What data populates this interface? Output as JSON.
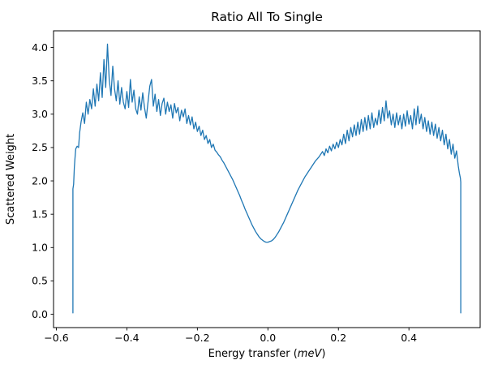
{
  "title": "Ratio All To Single",
  "axes": {
    "ylabel": "Scattered Weight",
    "xlabel_prefix": "Energy transfer (",
    "xlabel_italic": "meV",
    "xlabel_suffix": ")",
    "xlim": [
      -0.608,
      0.602
    ],
    "ylim": [
      -0.2,
      4.25
    ],
    "x_ticks": [
      {
        "v": -0.6,
        "label": "−0.6"
      },
      {
        "v": -0.4,
        "label": "−0.4"
      },
      {
        "v": -0.2,
        "label": "−0.2"
      },
      {
        "v": 0.0,
        "label": "0.0"
      },
      {
        "v": 0.2,
        "label": "0.2"
      },
      {
        "v": 0.4,
        "label": "0.4"
      }
    ],
    "y_ticks": [
      {
        "v": 0.0,
        "label": "0.0"
      },
      {
        "v": 0.5,
        "label": "0.5"
      },
      {
        "v": 1.0,
        "label": "1.0"
      },
      {
        "v": 1.5,
        "label": "1.5"
      },
      {
        "v": 2.0,
        "label": "2.0"
      },
      {
        "v": 2.5,
        "label": "2.5"
      },
      {
        "v": 3.0,
        "label": "3.0"
      },
      {
        "v": 3.5,
        "label": "3.5"
      },
      {
        "v": 4.0,
        "label": "4.0"
      }
    ]
  },
  "chart_data": {
    "type": "line",
    "title": "Ratio All To Single",
    "xlabel": "Energy transfer (meV)",
    "ylabel": "Scattered Weight",
    "color": "#1f77b4",
    "grid": false,
    "legend": false,
    "points": [
      [
        -0.553,
        0.02
      ],
      [
        -0.553,
        1.88
      ],
      [
        -0.551,
        1.95
      ],
      [
        -0.549,
        2.2
      ],
      [
        -0.547,
        2.35
      ],
      [
        -0.545,
        2.48
      ],
      [
        -0.541,
        2.52
      ],
      [
        -0.537,
        2.5
      ],
      [
        -0.534,
        2.72
      ],
      [
        -0.532,
        2.8
      ],
      [
        -0.53,
        2.88
      ],
      [
        -0.525,
        3.02
      ],
      [
        -0.52,
        2.86
      ],
      [
        -0.515,
        3.18
      ],
      [
        -0.51,
        3.0
      ],
      [
        -0.505,
        3.22
      ],
      [
        -0.5,
        3.08
      ],
      [
        -0.495,
        3.38
      ],
      [
        -0.49,
        3.12
      ],
      [
        -0.485,
        3.45
      ],
      [
        -0.48,
        3.2
      ],
      [
        -0.475,
        3.62
      ],
      [
        -0.47,
        3.25
      ],
      [
        -0.465,
        3.82
      ],
      [
        -0.46,
        3.4
      ],
      [
        -0.455,
        4.05
      ],
      [
        -0.45,
        3.52
      ],
      [
        -0.445,
        3.28
      ],
      [
        -0.44,
        3.72
      ],
      [
        -0.435,
        3.38
      ],
      [
        -0.43,
        3.2
      ],
      [
        -0.425,
        3.5
      ],
      [
        -0.42,
        3.15
      ],
      [
        -0.415,
        3.4
      ],
      [
        -0.41,
        3.18
      ],
      [
        -0.405,
        3.08
      ],
      [
        -0.4,
        3.34
      ],
      [
        -0.395,
        3.1
      ],
      [
        -0.39,
        3.52
      ],
      [
        -0.385,
        3.18
      ],
      [
        -0.38,
        3.36
      ],
      [
        -0.375,
        3.08
      ],
      [
        -0.37,
        3.0
      ],
      [
        -0.365,
        3.26
      ],
      [
        -0.36,
        3.06
      ],
      [
        -0.355,
        3.32
      ],
      [
        -0.35,
        3.1
      ],
      [
        -0.345,
        2.94
      ],
      [
        -0.34,
        3.18
      ],
      [
        -0.335,
        3.42
      ],
      [
        -0.33,
        3.52
      ],
      [
        -0.325,
        3.12
      ],
      [
        -0.32,
        3.3
      ],
      [
        -0.315,
        3.04
      ],
      [
        -0.31,
        3.22
      ],
      [
        -0.305,
        2.98
      ],
      [
        -0.3,
        3.16
      ],
      [
        -0.295,
        3.24
      ],
      [
        -0.29,
        3.0
      ],
      [
        -0.285,
        3.18
      ],
      [
        -0.28,
        3.04
      ],
      [
        -0.275,
        3.14
      ],
      [
        -0.27,
        2.94
      ],
      [
        -0.265,
        3.16
      ],
      [
        -0.26,
        3.02
      ],
      [
        -0.255,
        3.1
      ],
      [
        -0.25,
        2.9
      ],
      [
        -0.245,
        3.06
      ],
      [
        -0.24,
        2.96
      ],
      [
        -0.235,
        3.08
      ],
      [
        -0.23,
        2.86
      ],
      [
        -0.225,
        2.98
      ],
      [
        -0.22,
        2.84
      ],
      [
        -0.215,
        2.96
      ],
      [
        -0.21,
        2.78
      ],
      [
        -0.205,
        2.88
      ],
      [
        -0.2,
        2.74
      ],
      [
        -0.195,
        2.82
      ],
      [
        -0.19,
        2.68
      ],
      [
        -0.185,
        2.76
      ],
      [
        -0.18,
        2.62
      ],
      [
        -0.175,
        2.68
      ],
      [
        -0.17,
        2.56
      ],
      [
        -0.165,
        2.62
      ],
      [
        -0.16,
        2.5
      ],
      [
        -0.155,
        2.55
      ],
      [
        -0.15,
        2.46
      ],
      [
        -0.145,
        2.43
      ],
      [
        -0.14,
        2.39
      ],
      [
        -0.135,
        2.36
      ],
      [
        -0.13,
        2.31
      ],
      [
        -0.125,
        2.27
      ],
      [
        -0.12,
        2.22
      ],
      [
        -0.115,
        2.17
      ],
      [
        -0.11,
        2.12
      ],
      [
        -0.105,
        2.07
      ],
      [
        -0.1,
        2.02
      ],
      [
        -0.095,
        1.96
      ],
      [
        -0.09,
        1.9
      ],
      [
        -0.085,
        1.84
      ],
      [
        -0.08,
        1.78
      ],
      [
        -0.075,
        1.71
      ],
      [
        -0.07,
        1.65
      ],
      [
        -0.065,
        1.58
      ],
      [
        -0.06,
        1.52
      ],
      [
        -0.055,
        1.46
      ],
      [
        -0.05,
        1.4
      ],
      [
        -0.045,
        1.34
      ],
      [
        -0.04,
        1.29
      ],
      [
        -0.035,
        1.24
      ],
      [
        -0.03,
        1.2
      ],
      [
        -0.025,
        1.16
      ],
      [
        -0.02,
        1.13
      ],
      [
        -0.015,
        1.11
      ],
      [
        -0.01,
        1.09
      ],
      [
        -0.005,
        1.08
      ],
      [
        0.0,
        1.08
      ],
      [
        0.005,
        1.09
      ],
      [
        0.01,
        1.1
      ],
      [
        0.015,
        1.12
      ],
      [
        0.02,
        1.15
      ],
      [
        0.025,
        1.19
      ],
      [
        0.03,
        1.23
      ],
      [
        0.035,
        1.28
      ],
      [
        0.04,
        1.33
      ],
      [
        0.045,
        1.38
      ],
      [
        0.05,
        1.44
      ],
      [
        0.055,
        1.5
      ],
      [
        0.06,
        1.56
      ],
      [
        0.065,
        1.62
      ],
      [
        0.07,
        1.68
      ],
      [
        0.075,
        1.74
      ],
      [
        0.08,
        1.8
      ],
      [
        0.085,
        1.86
      ],
      [
        0.09,
        1.91
      ],
      [
        0.095,
        1.96
      ],
      [
        0.1,
        2.01
      ],
      [
        0.105,
        2.06
      ],
      [
        0.11,
        2.1
      ],
      [
        0.115,
        2.14
      ],
      [
        0.12,
        2.18
      ],
      [
        0.125,
        2.22
      ],
      [
        0.13,
        2.26
      ],
      [
        0.135,
        2.3
      ],
      [
        0.14,
        2.33
      ],
      [
        0.145,
        2.36
      ],
      [
        0.15,
        2.4
      ],
      [
        0.155,
        2.44
      ],
      [
        0.16,
        2.38
      ],
      [
        0.165,
        2.48
      ],
      [
        0.17,
        2.42
      ],
      [
        0.175,
        2.52
      ],
      [
        0.18,
        2.45
      ],
      [
        0.185,
        2.55
      ],
      [
        0.19,
        2.48
      ],
      [
        0.195,
        2.58
      ],
      [
        0.2,
        2.5
      ],
      [
        0.205,
        2.62
      ],
      [
        0.21,
        2.54
      ],
      [
        0.215,
        2.7
      ],
      [
        0.22,
        2.56
      ],
      [
        0.225,
        2.76
      ],
      [
        0.23,
        2.6
      ],
      [
        0.235,
        2.8
      ],
      [
        0.24,
        2.66
      ],
      [
        0.245,
        2.84
      ],
      [
        0.25,
        2.68
      ],
      [
        0.255,
        2.88
      ],
      [
        0.26,
        2.7
      ],
      [
        0.265,
        2.92
      ],
      [
        0.27,
        2.74
      ],
      [
        0.275,
        2.95
      ],
      [
        0.28,
        2.76
      ],
      [
        0.285,
        2.98
      ],
      [
        0.29,
        2.78
      ],
      [
        0.295,
        3.02
      ],
      [
        0.3,
        2.8
      ],
      [
        0.305,
        2.94
      ],
      [
        0.31,
        2.84
      ],
      [
        0.315,
        3.06
      ],
      [
        0.32,
        2.86
      ],
      [
        0.325,
        3.1
      ],
      [
        0.33,
        2.9
      ],
      [
        0.335,
        3.2
      ],
      [
        0.34,
        2.94
      ],
      [
        0.345,
        3.05
      ],
      [
        0.35,
        2.84
      ],
      [
        0.355,
        3.0
      ],
      [
        0.36,
        2.8
      ],
      [
        0.365,
        3.02
      ],
      [
        0.37,
        2.84
      ],
      [
        0.375,
        2.98
      ],
      [
        0.38,
        2.78
      ],
      [
        0.385,
        3.0
      ],
      [
        0.39,
        2.82
      ],
      [
        0.395,
        3.05
      ],
      [
        0.4,
        2.85
      ],
      [
        0.405,
        2.98
      ],
      [
        0.41,
        2.78
      ],
      [
        0.415,
        3.08
      ],
      [
        0.42,
        2.84
      ],
      [
        0.425,
        3.12
      ],
      [
        0.43,
        2.86
      ],
      [
        0.435,
        3.0
      ],
      [
        0.44,
        2.78
      ],
      [
        0.445,
        2.95
      ],
      [
        0.45,
        2.74
      ],
      [
        0.455,
        2.9
      ],
      [
        0.46,
        2.7
      ],
      [
        0.465,
        2.88
      ],
      [
        0.47,
        2.68
      ],
      [
        0.475,
        2.85
      ],
      [
        0.48,
        2.64
      ],
      [
        0.485,
        2.8
      ],
      [
        0.49,
        2.6
      ],
      [
        0.495,
        2.76
      ],
      [
        0.5,
        2.54
      ],
      [
        0.505,
        2.7
      ],
      [
        0.51,
        2.48
      ],
      [
        0.515,
        2.62
      ],
      [
        0.52,
        2.4
      ],
      [
        0.525,
        2.55
      ],
      [
        0.53,
        2.34
      ],
      [
        0.535,
        2.45
      ],
      [
        0.54,
        2.22
      ],
      [
        0.543,
        2.12
      ],
      [
        0.546,
        2.04
      ],
      [
        0.547,
        1.98
      ],
      [
        0.547,
        0.02
      ]
    ]
  }
}
